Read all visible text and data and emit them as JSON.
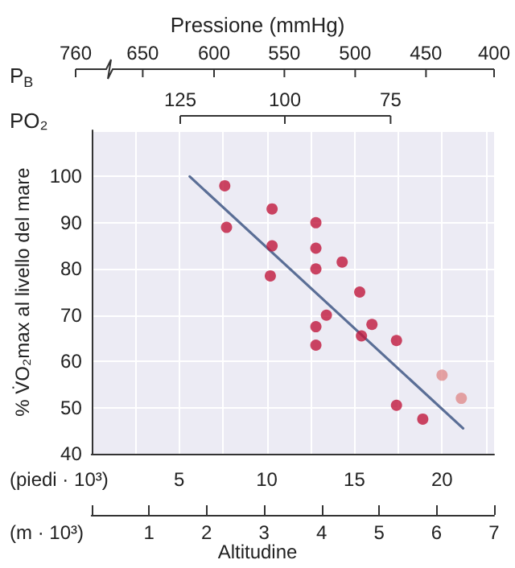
{
  "chart_data": {
    "type": "scatter",
    "title": "Pressione (mmHg)",
    "xlabel": "Altitudine",
    "ylabel": "% V̇O₂max al livello del mare",
    "x2label": "(m · 10³)",
    "annotations": [
      "(piedi · 10³)",
      "P$_{B}$",
      "760",
      "650",
      "600",
      "550",
      "500",
      "450",
      "400",
      "PO₂",
      "125",
      "100",
      "75"
    ],
    "xlim": [
      0,
      22.97
    ],
    "xticks": [
      {
        "value": 0,
        "label": null
      },
      {
        "value": 2.5,
        "label": null
      },
      5,
      {
        "value": 7.5,
        "label": null
      },
      10,
      {
        "value": 12.5,
        "label": null
      },
      15,
      {
        "value": 17.5,
        "label": null
      },
      20,
      {
        "value": 22.5,
        "label": null
      }
    ],
    "x2lim": [
      0,
      7
    ],
    "x2ticks": [
      {
        "value": 0,
        "label": null
      },
      1,
      2,
      3,
      4,
      5,
      6,
      7
    ],
    "ylim": [
      40,
      110
    ],
    "yticks": [
      40,
      50,
      60,
      70,
      80,
      90,
      100
    ],
    "grid": true,
    "marker": "circle",
    "series": [
      {
        "color": "#c0183c",
        "x": [
          7.6,
          7.7,
          10.3,
          10.3,
          10.2,
          12.8,
          12.8,
          12.8,
          14.3,
          15.3,
          13.4,
          12.8,
          12.8,
          16.0,
          15.4,
          17.4,
          17.4,
          18.9
        ],
        "values": [
          98,
          89,
          93,
          85,
          78.5,
          90,
          84.5,
          80,
          81.5,
          75,
          70,
          67.5,
          63.5,
          68,
          65.5,
          64.5,
          50.5,
          47.5
        ]
      },
      {
        "color": "#e08c8c",
        "x": [
          20.0,
          21.1
        ],
        "values": [
          57,
          52
        ]
      },
      {
        "type": "line",
        "color": "#5a6e96",
        "marker": "none",
        "x": [
          5.6,
          21.2
        ],
        "values": [
          100,
          45.5
        ]
      }
    ]
  }
}
